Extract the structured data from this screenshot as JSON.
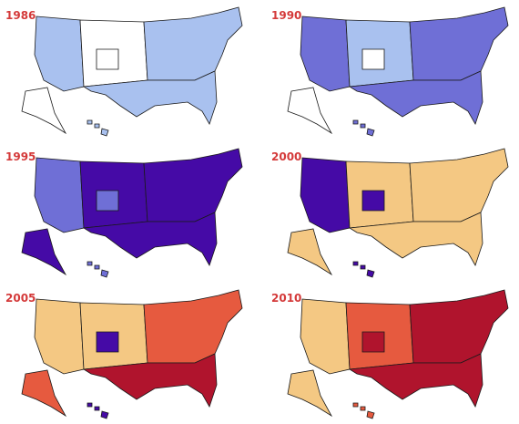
{
  "colors": {
    "year_label": "#d43a3a",
    "outline": "#1a1a1a",
    "c0": "#ffffff",
    "c1": "#a9c1ef",
    "c2": "#6f6fd6",
    "c3": "#450aa6",
    "c4": "#f4c883",
    "c5": "#e65a3f",
    "c6": "#b0142d"
  },
  "panels": [
    {
      "year": "1986",
      "levels": {
        "east": 1,
        "west": 1,
        "center": 0,
        "south": 1,
        "ak": 0,
        "hi": 1,
        "accent": 0
      }
    },
    {
      "year": "1990",
      "levels": {
        "east": 2,
        "west": 2,
        "center": 1,
        "south": 2,
        "ak": 0,
        "hi": 2,
        "accent": 0
      }
    },
    {
      "year": "1995",
      "levels": {
        "east": 3,
        "west": 2,
        "center": 3,
        "south": 3,
        "ak": 3,
        "hi": 2,
        "accent": 2
      }
    },
    {
      "year": "2000",
      "levels": {
        "east": 4,
        "west": 3,
        "center": 4,
        "south": 4,
        "ak": 4,
        "hi": 3,
        "accent": 3
      }
    },
    {
      "year": "2005",
      "levels": {
        "east": 5,
        "west": 4,
        "center": 4,
        "south": 6,
        "ak": 5,
        "hi": 3,
        "accent": 3
      }
    },
    {
      "year": "2010",
      "levels": {
        "east": 6,
        "west": 4,
        "center": 5,
        "south": 6,
        "ak": 4,
        "hi": 5,
        "accent": 6
      }
    }
  ]
}
